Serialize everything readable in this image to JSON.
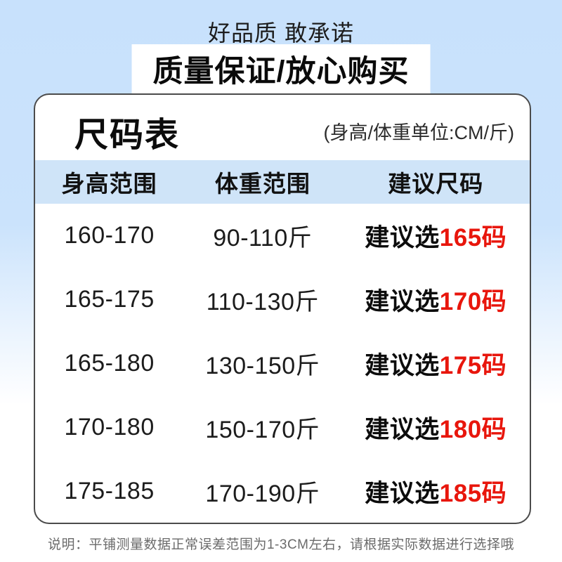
{
  "page": {
    "tagline": "好品质 敢承诺",
    "banner": "质量保证/放心购买"
  },
  "card": {
    "title": "尺码表",
    "unit_note": "(身高/体重单位:CM/斤)",
    "columns": [
      "身高范围",
      "体重范围",
      "建议尺码"
    ],
    "rows": [
      {
        "height": "160-170",
        "weight": "90-110斤",
        "advice_prefix": "建议选",
        "size": "165码"
      },
      {
        "height": "165-175",
        "weight": "110-130斤",
        "advice_prefix": "建议选",
        "size": "170码"
      },
      {
        "height": "165-180",
        "weight": "130-150斤",
        "advice_prefix": "建议选",
        "size": "175码"
      },
      {
        "height": "170-180",
        "weight": "150-170斤",
        "advice_prefix": "建议选",
        "size": "180码"
      },
      {
        "height": "175-185",
        "weight": "170-190斤",
        "advice_prefix": "建议选",
        "size": "185码"
      }
    ]
  },
  "footer": {
    "note": "说明：平铺测量数据正常误差范围为1-3CM左右，请根据实际数据进行选择哦"
  },
  "colors": {
    "accent_red": "#e8160c",
    "background_blue": "#c8e1fc",
    "header_band": "#cfe4f8",
    "card_border": "#4b4b4b"
  }
}
